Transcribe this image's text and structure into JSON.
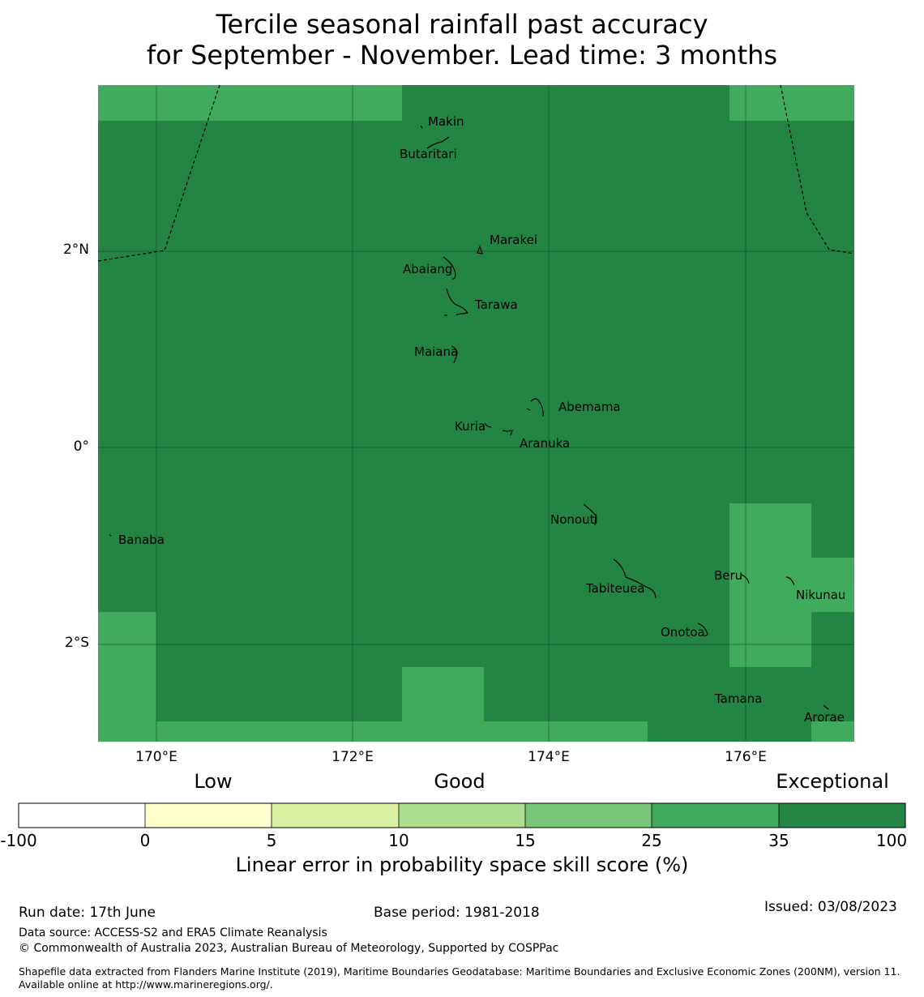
{
  "title": {
    "line1": "Tercile seasonal rainfall past accuracy",
    "line2": "for September - November. Lead time: 3 months"
  },
  "map": {
    "lat_ticks": [
      "2°N",
      "0°",
      "2°S"
    ],
    "lon_ticks": [
      "170°E",
      "172°E",
      "174°E",
      "176°E"
    ],
    "lon_range": [
      169.4,
      177.1
    ],
    "lat_range": [
      -3.0,
      3.7
    ],
    "colors": {
      "exceptional": "#238443",
      "very_good": "#41ab5d"
    },
    "grid_cells_35_to_100": "background",
    "islands": [
      {
        "name": "Makin",
        "lon": 172.95,
        "lat": 3.34
      },
      {
        "name": "Butaritari",
        "lon": 172.75,
        "lat": 3.01
      },
      {
        "name": "Marakei",
        "lon": 173.45,
        "lat": 2.12
      },
      {
        "name": "Abaiang",
        "lon": 172.77,
        "lat": 1.83
      },
      {
        "name": "Tarawa",
        "lon": 173.3,
        "lat": 1.46
      },
      {
        "name": "Maiana",
        "lon": 172.85,
        "lat": 0.98
      },
      {
        "name": "Abemama",
        "lon": 174.4,
        "lat": 0.41
      },
      {
        "name": "Kuria",
        "lon": 172.9,
        "lat": 0.22
      },
      {
        "name": "Aranuka",
        "lon": 174.0,
        "lat": 0.04
      },
      {
        "name": "Nonouti",
        "lon": 174.25,
        "lat": -0.73
      },
      {
        "name": "Banaba",
        "lon": 169.7,
        "lat": -0.94
      },
      {
        "name": "Beru",
        "lon": 175.85,
        "lat": -1.31
      },
      {
        "name": "Tabiteuea",
        "lon": 174.7,
        "lat": -1.44
      },
      {
        "name": "Nikunau",
        "lon": 176.55,
        "lat": -1.51
      },
      {
        "name": "Onotoa",
        "lon": 175.45,
        "lat": -1.88
      },
      {
        "name": "Tamana",
        "lon": 175.95,
        "lat": -2.55
      },
      {
        "name": "Arorae",
        "lon": 176.8,
        "lat": -2.74
      }
    ]
  },
  "colorbar": {
    "categories": [
      "Low",
      "Good",
      "Exceptional"
    ],
    "ticks": [
      "-100",
      "0",
      "5",
      "10",
      "15",
      "25",
      "35",
      "100"
    ],
    "colors": [
      "#ffffff",
      "#ffffcc",
      "#d9f0a3",
      "#addd8e",
      "#78c679",
      "#41ab5d",
      "#238443"
    ],
    "caption": "Linear error in probability space skill score (%)"
  },
  "footer": {
    "run_date": "Run date: 17th June",
    "base_period": "Base period: 1981-2018",
    "issued": "Issued: 03/08/2023",
    "data_source": "Data source: ACCESS-S2 and ERA5 Climate Reanalysis",
    "copyright": "© Commonwealth of Australia 2023, Australian Bureau of Meteorology, Supported by COSPPac",
    "shapefile": "Shapefile data extracted from Flanders Marine Institute (2019), Maritime Boundaries Geodatabase: Maritime Boundaries and Exclusive Economic Zones (200NM), version 11. Available online at http://www.marineregions.org/."
  }
}
